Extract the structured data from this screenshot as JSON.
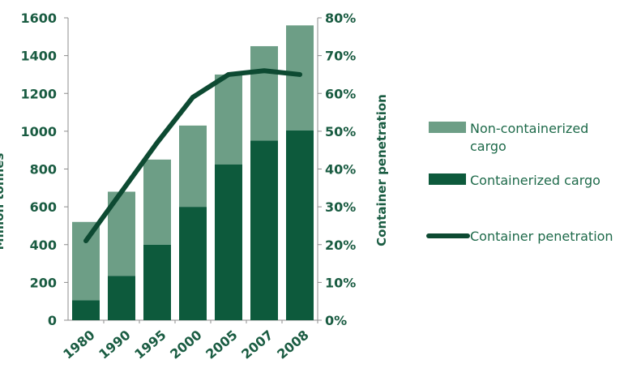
{
  "chart_data": {
    "type": "bar",
    "stacked": true,
    "categories": [
      "1980",
      "1990",
      "1995",
      "2000",
      "2005",
      "2007",
      "2008"
    ],
    "series": [
      {
        "name": "Containerized cargo",
        "type": "bar",
        "axis": "left",
        "color": "#0d5a3c",
        "values": [
          105,
          235,
          400,
          600,
          825,
          950,
          1005
        ]
      },
      {
        "name": "Non-containerized cargo",
        "type": "bar",
        "axis": "left",
        "color": "#6d9e86",
        "values": [
          415,
          445,
          450,
          430,
          475,
          500,
          555
        ]
      },
      {
        "name": "Container penetration",
        "type": "line",
        "axis": "right",
        "color": "#0d4a32",
        "values": [
          21,
          34,
          47,
          59,
          65,
          66,
          65
        ]
      }
    ],
    "left_axis": {
      "label": "Million tonnes",
      "ylim": [
        0,
        1600
      ],
      "ticks": [
        "0",
        "200",
        "400",
        "600",
        "800",
        "1000",
        "1200",
        "1400",
        "1600"
      ]
    },
    "right_axis": {
      "label": "Container penetration",
      "ylim": [
        0,
        80
      ],
      "ticks": [
        "0%",
        "10%",
        "20%",
        "30%",
        "40%",
        "50%",
        "60%",
        "70%",
        "80%"
      ]
    },
    "legend": {
      "position": "right",
      "items": [
        {
          "lines": [
            "Non-containerized",
            "cargo"
          ],
          "kind": "swatch",
          "color": "#6d9e86"
        },
        {
          "lines": [
            "Containerized cargo"
          ],
          "kind": "swatch",
          "color": "#0d5a3c"
        },
        {
          "lines": [
            "Container penetration"
          ],
          "kind": "line",
          "color": "#0d4a32"
        }
      ]
    },
    "grid": false
  }
}
